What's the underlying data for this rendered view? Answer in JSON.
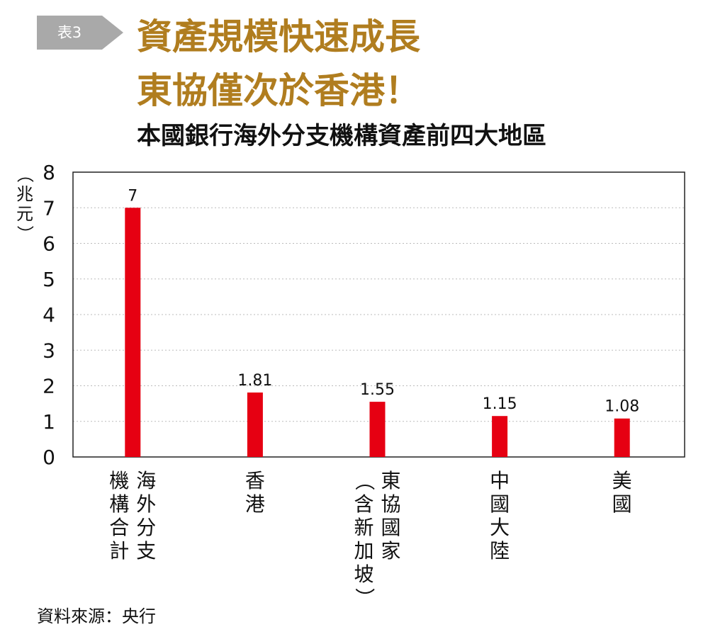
{
  "badge": {
    "label": "表3"
  },
  "title": {
    "line1": "資產規模快速成長",
    "line2": "東協僅次於香港！"
  },
  "subtitle": "本國銀行海外分支機構資產前四大地區",
  "unit_label": "（兆元）",
  "source": "資料來源：央行",
  "colors": {
    "bar": "#e60012",
    "title": "#b07d1f",
    "badge": "#a9a9a9"
  },
  "chart_data": {
    "type": "bar",
    "title": "本國銀行海外分支機構資產前四大地區",
    "ylabel": "（兆元）",
    "xlabel": "",
    "ylim": [
      0,
      8
    ],
    "yticks": [
      0,
      1,
      2,
      3,
      4,
      5,
      6,
      7,
      8
    ],
    "grid": true,
    "categories": [
      "海外分支機構合計",
      "香港",
      "東協國家（含新加坡）",
      "中國大陸",
      "美國"
    ],
    "category_columns": [
      [
        "海外分支",
        "機構合計"
      ],
      [
        "香港"
      ],
      [
        "東協國家",
        "（含新加坡）"
      ],
      [
        "中國大陸"
      ],
      [
        "美國"
      ]
    ],
    "values": [
      7,
      1.81,
      1.55,
      1.15,
      1.08
    ],
    "data_labels": [
      "7",
      "1.81",
      "1.55",
      "1.15",
      "1.08"
    ]
  }
}
